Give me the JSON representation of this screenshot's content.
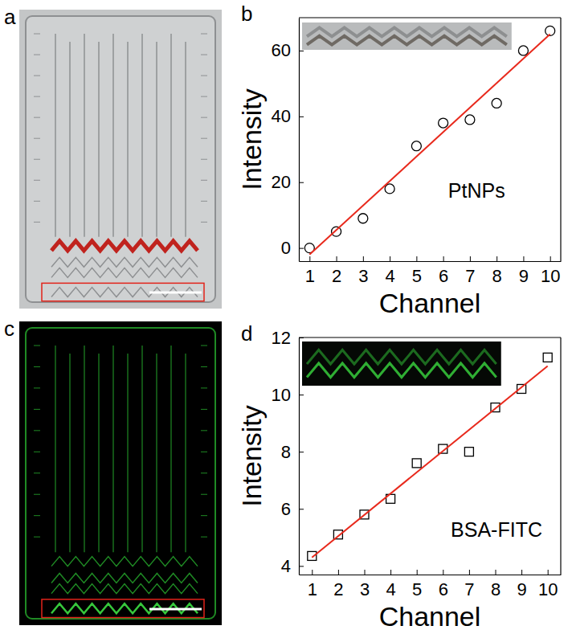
{
  "chart_data": [
    {
      "type": "scatter",
      "panel_label": "b",
      "annotation": "PtNPs",
      "x_label": "Channel",
      "y_label": "Intensity",
      "x": [
        1,
        2,
        3,
        4,
        5,
        6,
        7,
        8,
        9,
        10
      ],
      "xlim": [
        0.6,
        10.4
      ],
      "xticks": [
        1,
        2,
        3,
        4,
        5,
        6,
        7,
        8,
        9,
        10
      ],
      "ylim": [
        -4,
        70
      ],
      "yticks": [
        0,
        20,
        40,
        60
      ],
      "series": [
        {
          "type": "scatter",
          "marker": "circle",
          "color": "#000000",
          "values": [
            0,
            5,
            9,
            18,
            31,
            38,
            39,
            44,
            60,
            66
          ]
        },
        {
          "type": "line",
          "line_style": "solid",
          "color": "#e8291c",
          "x": [
            1,
            10
          ],
          "values": [
            -2,
            65
          ]
        }
      ]
    },
    {
      "type": "scatter",
      "panel_label": "d",
      "annotation": "BSA-FITC",
      "x_label": "Channel",
      "y_label": "Intensity",
      "x": [
        1,
        2,
        3,
        4,
        5,
        6,
        7,
        8,
        9,
        10
      ],
      "xlim": [
        0.5,
        10.5
      ],
      "xticks": [
        1,
        2,
        3,
        4,
        5,
        6,
        7,
        8,
        9,
        10
      ],
      "ylim": [
        3.7,
        12
      ],
      "yticks": [
        4,
        6,
        8,
        10,
        12
      ],
      "series": [
        {
          "type": "scatter",
          "marker": "square",
          "color": "#000000",
          "values": [
            4.35,
            5.1,
            5.8,
            6.35,
            7.6,
            8.1,
            8.0,
            9.55,
            10.2,
            11.3
          ]
        },
        {
          "type": "line",
          "line_style": "solid",
          "color": "#e8291c",
          "x": [
            1,
            10
          ],
          "values": [
            4.3,
            11.0
          ]
        }
      ]
    }
  ],
  "photos": [
    {
      "panel_label": "a"
    },
    {
      "panel_label": "c"
    }
  ]
}
